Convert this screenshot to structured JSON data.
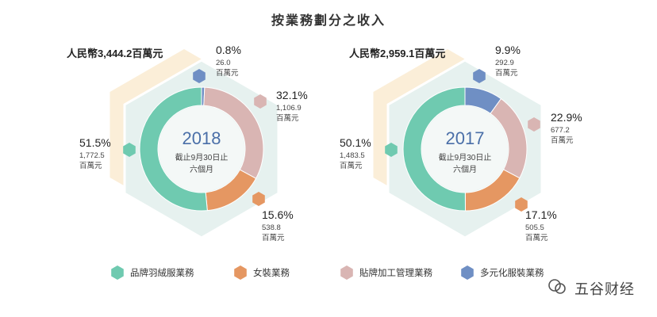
{
  "title": "按業務劃分之收入",
  "colors": {
    "down": "#6fcab0",
    "women": "#e59762",
    "oem": "#d9b5b3",
    "diversified": "#6f8fc4",
    "hex_bg": "#e6f1ef",
    "hex_back": "#fbeed8",
    "year_text": "#4a6fa8"
  },
  "legend": [
    {
      "label": "品牌羽絨服業務",
      "color_key": "down"
    },
    {
      "label": "女裝業務",
      "color_key": "women"
    },
    {
      "label": "貼牌加工管理業務",
      "color_key": "oem"
    },
    {
      "label": "多元化服裝業務",
      "color_key": "diversified"
    }
  ],
  "watermark": "五谷财经",
  "chart_data": [
    {
      "type": "pie",
      "title": "2018",
      "subtitle_lines": [
        "截止9月30日止",
        "六個月"
      ],
      "total_label": "人民幣3,444.2百萬元",
      "unit": "百萬元",
      "slices": [
        {
          "category": "多元化服裝業務",
          "percent": "0.8%",
          "value": "26.0",
          "fraction": 0.008,
          "color_key": "diversified"
        },
        {
          "category": "貼牌加工管理業務",
          "percent": "32.1%",
          "value": "1,106.9",
          "fraction": 0.321,
          "color_key": "oem"
        },
        {
          "category": "女裝業務",
          "percent": "15.6%",
          "value": "538.8",
          "fraction": 0.156,
          "color_key": "women"
        },
        {
          "category": "品牌羽絨服業務",
          "percent": "51.5%",
          "value": "1,772.5",
          "fraction": 0.515,
          "color_key": "down"
        }
      ]
    },
    {
      "type": "pie",
      "title": "2017",
      "subtitle_lines": [
        "截止9月30日止",
        "六個月"
      ],
      "total_label": "人民幣2,959.1百萬元",
      "unit": "百萬元",
      "slices": [
        {
          "category": "多元化服裝業務",
          "percent": "9.9%",
          "value": "292.9",
          "fraction": 0.099,
          "color_key": "diversified"
        },
        {
          "category": "貼牌加工管理業務",
          "percent": "22.9%",
          "value": "677.2",
          "fraction": 0.229,
          "color_key": "oem"
        },
        {
          "category": "女裝業務",
          "percent": "17.1%",
          "value": "505.5",
          "fraction": 0.171,
          "color_key": "women"
        },
        {
          "category": "品牌羽絨服業務",
          "percent": "50.1%",
          "value": "1,483.5",
          "fraction": 0.501,
          "color_key": "down"
        }
      ]
    }
  ]
}
